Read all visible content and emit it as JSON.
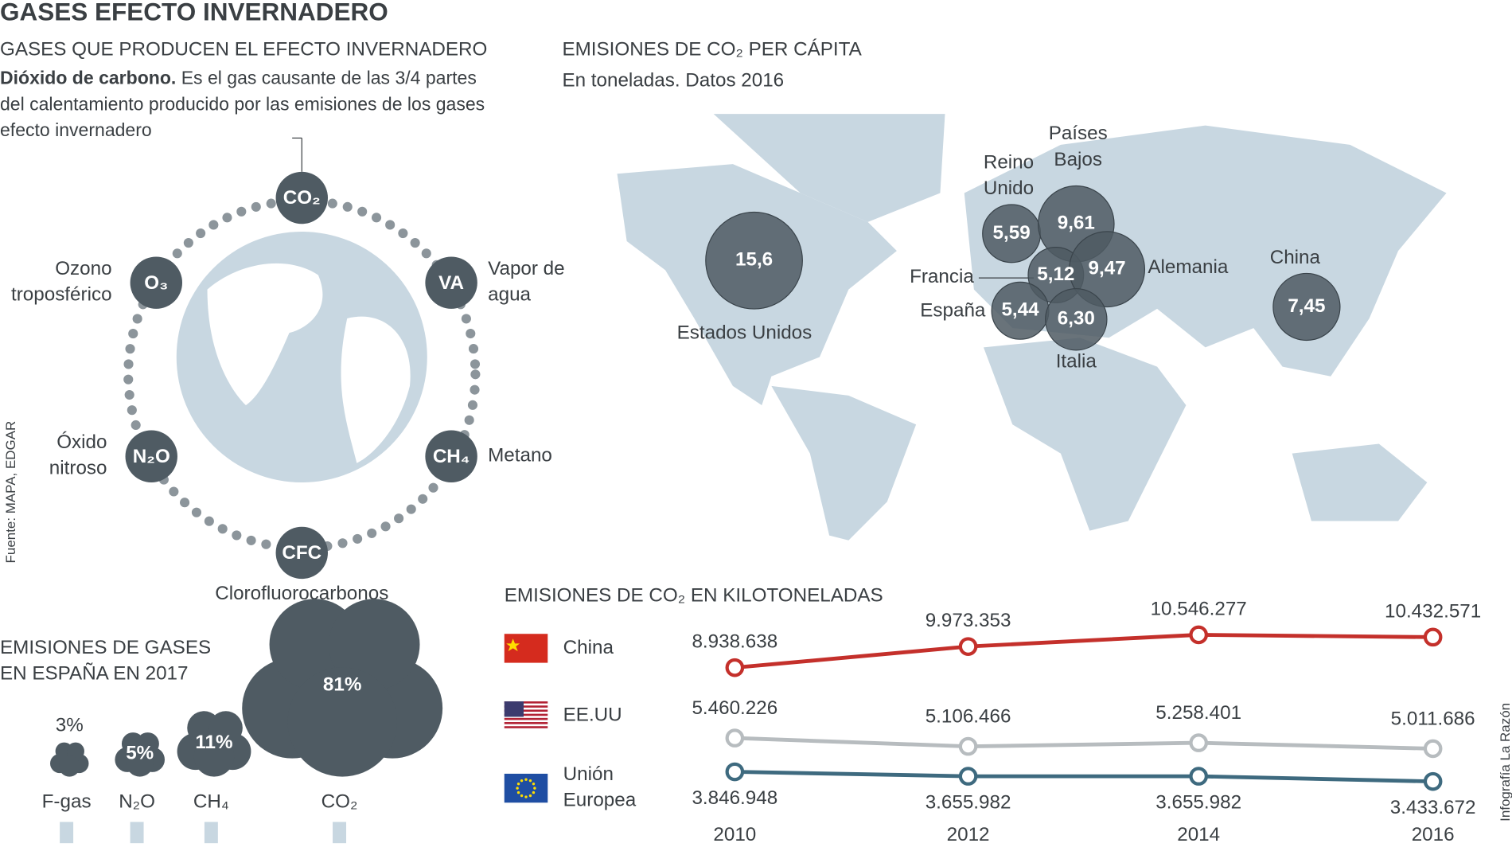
{
  "title": "GASES EFECTO INVERNADERO",
  "source": "Fuente: MAPA, EDGAR",
  "credit": "Infografía La Razón",
  "gases": {
    "heading": "GASES QUE PRODUCEN EL EFECTO INVERNADERO",
    "intro_bold": "Dióxido de carbono.",
    "intro": "Es el gas causante de las 3/4 partes del calentamiento producido por las emisiones de los gases efecto invernadero",
    "items": [
      {
        "symbol": "CO₂"
      },
      {
        "symbol": "VA",
        "label": "Vapor de agua"
      },
      {
        "symbol": "CH₄",
        "label": "Metano"
      },
      {
        "symbol": "CFC",
        "label": "Clorofluorocarbonos"
      },
      {
        "symbol": "N₂O",
        "label": "Óxido nitroso"
      },
      {
        "symbol": "O₃",
        "label": "Ozono troposférico"
      }
    ]
  },
  "chart_data": [
    {
      "type": "bubble",
      "title": "EMISIONES DE CO₂ PER CÁPITA",
      "subtitle": "En toneladas. Datos 2016",
      "categories": [
        "Estados Unidos",
        "Reino Unido",
        "Países Bajos",
        "Francia",
        "Alemania",
        "España",
        "Italia",
        "China"
      ],
      "values": [
        15.6,
        5.59,
        9.61,
        5.12,
        9.47,
        5.44,
        6.3,
        7.45
      ],
      "value_labels": [
        "15,6",
        "5,59",
        "9,61",
        "5,12",
        "9,47",
        "5,44",
        "6,30",
        "7,45"
      ],
      "color": "#4f5b63"
    },
    {
      "type": "cloud",
      "title": "EMISIONES DE GASES EN ESPAÑA EN 2017",
      "categories": [
        "F-gas",
        "N₂O",
        "CH₄",
        "CO₂"
      ],
      "values": [
        3,
        5,
        11,
        81
      ],
      "value_labels": [
        "3%",
        "5%",
        "11%",
        "81%"
      ],
      "color": "#4f5b63"
    },
    {
      "type": "line",
      "title": "EMISIONES DE CO₂ EN KILOTONELADAS",
      "x": [
        2010,
        2012,
        2014,
        2016
      ],
      "series": [
        {
          "name": "China",
          "color": "#c4302b",
          "values": [
            8938638,
            9973353,
            10546277,
            10432571
          ],
          "value_labels": [
            "8.938.638",
            "9.973.353",
            "10.546.277",
            "10.432.571"
          ]
        },
        {
          "name": "EE.UU",
          "color": "#b7bcbf",
          "values": [
            5460226,
            5106466,
            5258401,
            5011686
          ],
          "value_labels": [
            "5.460.226",
            "5.106.466",
            "5.258.401",
            "5.011.686"
          ]
        },
        {
          "name": "Unión Europea",
          "color": "#3e6a7f",
          "values": [
            3846948,
            3655982,
            3655982,
            3433672
          ],
          "value_labels": [
            "3.846.948",
            "3.655.982",
            "3.655.982",
            "3.433.672"
          ]
        }
      ]
    }
  ]
}
